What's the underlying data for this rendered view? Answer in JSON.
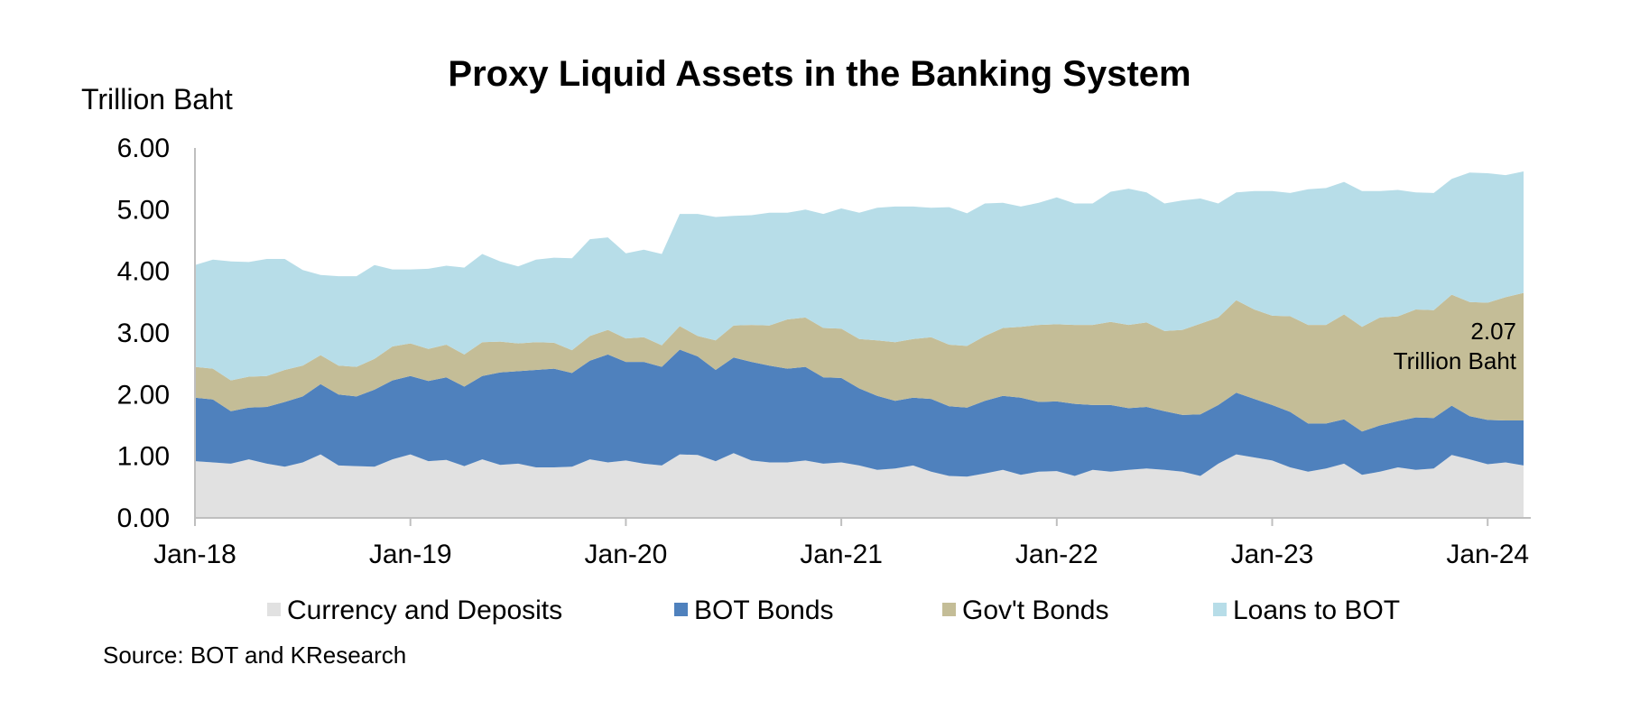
{
  "chart_data": {
    "type": "area",
    "stacked": true,
    "title": "Proxy Liquid Assets in the Banking System",
    "ylabel": "Trillion Baht",
    "xlabel": "",
    "ylim": [
      0,
      6
    ],
    "yticks": [
      "0.00",
      "1.00",
      "2.00",
      "3.00",
      "4.00",
      "5.00",
      "6.00"
    ],
    "ytick_values": [
      0,
      1,
      2,
      3,
      4,
      5,
      6
    ],
    "xtick_labels": [
      "Jan-18",
      "Jan-19",
      "Jan-20",
      "Jan-21",
      "Jan-22",
      "Jan-23",
      "Jan-24"
    ],
    "x_start": "Jan-18",
    "x_end": "Mar-24",
    "grid": false,
    "legend_position": "bottom",
    "annotation": {
      "value": "2.07",
      "unit": "Trillion Baht"
    },
    "source": "Source: BOT and KResearch",
    "series": [
      {
        "name": "Currency and Deposits",
        "color": "#e1e1e1",
        "values": [
          0.92,
          0.9,
          0.88,
          0.95,
          0.88,
          0.83,
          0.9,
          1.03,
          0.85,
          0.84,
          0.83,
          0.95,
          1.03,
          0.92,
          0.94,
          0.84,
          0.95,
          0.86,
          0.88,
          0.82,
          0.82,
          0.83,
          0.95,
          0.9,
          0.93,
          0.88,
          0.85,
          1.03,
          1.02,
          0.92,
          1.05,
          0.93,
          0.9,
          0.9,
          0.93,
          0.88,
          0.9,
          0.85,
          0.78,
          0.8,
          0.85,
          0.75,
          0.68,
          0.67,
          0.72,
          0.78,
          0.7,
          0.75,
          0.76,
          0.68,
          0.78,
          0.75,
          0.78,
          0.8,
          0.78,
          0.75,
          0.68,
          0.88,
          1.03,
          0.98,
          0.93,
          0.82,
          0.75,
          0.8,
          0.88,
          0.7,
          0.75,
          0.82,
          0.78,
          0.8,
          1.02,
          0.95,
          0.87,
          0.9,
          0.85
        ]
      },
      {
        "name": "BOT Bonds",
        "color": "#4f81bd",
        "values": [
          1.03,
          1.02,
          0.85,
          0.84,
          0.92,
          1.05,
          1.07,
          1.14,
          1.15,
          1.13,
          1.25,
          1.28,
          1.27,
          1.3,
          1.34,
          1.29,
          1.35,
          1.5,
          1.5,
          1.58,
          1.6,
          1.52,
          1.6,
          1.75,
          1.6,
          1.65,
          1.6,
          1.7,
          1.6,
          1.48,
          1.55,
          1.6,
          1.57,
          1.52,
          1.52,
          1.4,
          1.37,
          1.25,
          1.2,
          1.1,
          1.1,
          1.18,
          1.13,
          1.12,
          1.18,
          1.2,
          1.25,
          1.13,
          1.13,
          1.17,
          1.05,
          1.08,
          1.0,
          1.0,
          0.95,
          0.92,
          1.0,
          0.95,
          1.0,
          0.95,
          0.9,
          0.9,
          0.78,
          0.73,
          0.72,
          0.7,
          0.75,
          0.75,
          0.85,
          0.82,
          0.8,
          0.7,
          0.72,
          0.68,
          0.73
        ]
      },
      {
        "name": "Gov't Bonds",
        "color": "#c4bd97",
        "values": [
          0.5,
          0.5,
          0.5,
          0.5,
          0.5,
          0.52,
          0.5,
          0.47,
          0.47,
          0.48,
          0.5,
          0.55,
          0.53,
          0.52,
          0.53,
          0.52,
          0.55,
          0.5,
          0.45,
          0.45,
          0.42,
          0.37,
          0.4,
          0.4,
          0.38,
          0.4,
          0.35,
          0.38,
          0.33,
          0.48,
          0.52,
          0.6,
          0.65,
          0.8,
          0.8,
          0.8,
          0.8,
          0.8,
          0.9,
          0.95,
          0.95,
          1.0,
          1.0,
          1.0,
          1.05,
          1.1,
          1.15,
          1.25,
          1.25,
          1.28,
          1.3,
          1.35,
          1.35,
          1.37,
          1.3,
          1.38,
          1.47,
          1.42,
          1.5,
          1.45,
          1.45,
          1.55,
          1.6,
          1.6,
          1.7,
          1.7,
          1.75,
          1.7,
          1.75,
          1.75,
          1.8,
          1.85,
          1.9,
          2.0,
          2.07
        ]
      },
      {
        "name": "Loans to BOT",
        "color": "#b7dde8",
        "values": [
          1.65,
          1.77,
          1.93,
          1.86,
          1.9,
          1.8,
          1.55,
          1.3,
          1.45,
          1.47,
          1.52,
          1.25,
          1.2,
          1.3,
          1.28,
          1.41,
          1.43,
          1.3,
          1.25,
          1.34,
          1.38,
          1.49,
          1.57,
          1.5,
          1.38,
          1.42,
          1.48,
          1.82,
          1.98,
          2.0,
          1.78,
          1.78,
          1.83,
          1.73,
          1.75,
          1.85,
          1.95,
          2.05,
          2.15,
          2.2,
          2.15,
          2.1,
          2.23,
          2.15,
          2.15,
          2.03,
          1.95,
          1.98,
          2.06,
          1.97,
          1.97,
          2.11,
          2.21,
          2.11,
          2.07,
          2.1,
          2.03,
          1.85,
          1.75,
          1.92,
          2.02,
          2.0,
          2.2,
          2.22,
          2.15,
          2.2,
          2.05,
          2.05,
          1.9,
          1.9,
          1.88,
          2.1,
          2.1,
          1.98,
          1.97
        ]
      }
    ]
  }
}
